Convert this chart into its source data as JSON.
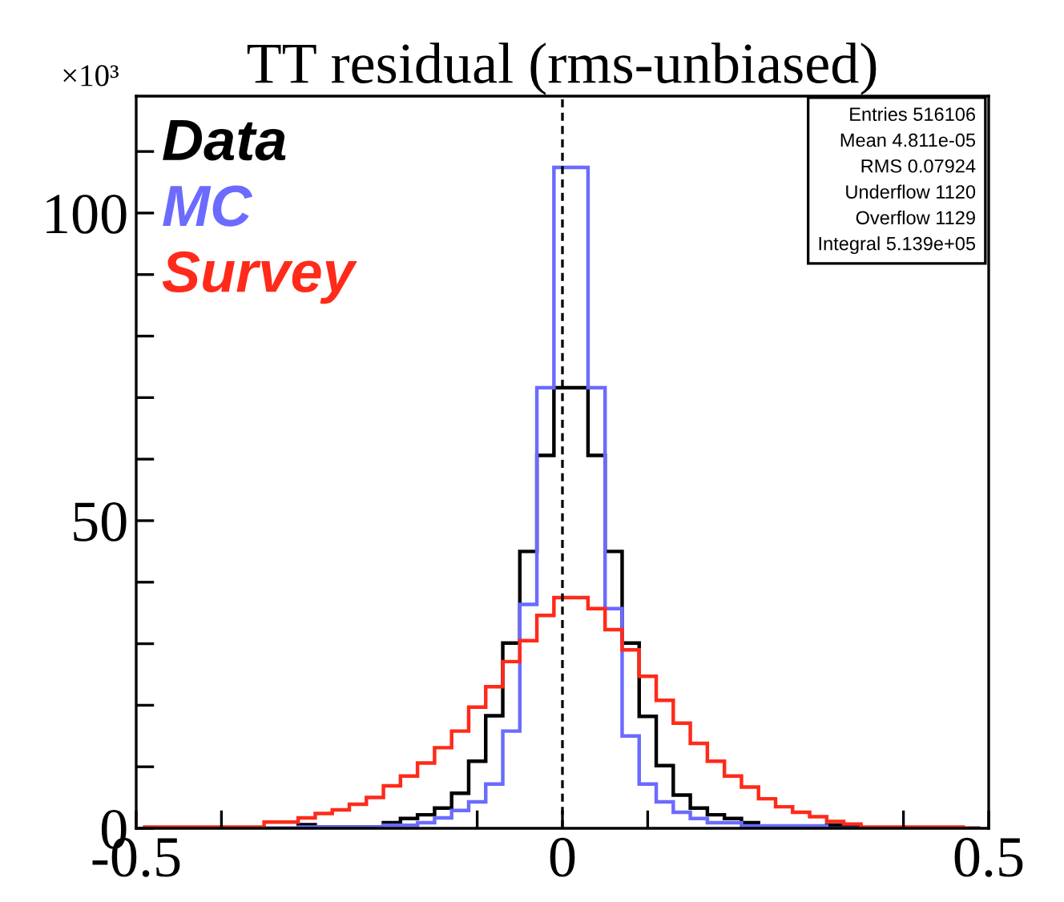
{
  "chart_data": {
    "type": "histogram",
    "title": "TT residual (rms-unbiased)",
    "bins": [
      -0.49,
      -0.47,
      -0.45,
      -0.43,
      -0.41,
      -0.39,
      -0.37,
      -0.35,
      -0.33,
      -0.31,
      -0.29,
      -0.27,
      -0.25,
      -0.23,
      -0.21,
      -0.19,
      -0.17,
      -0.15,
      -0.13,
      -0.11,
      -0.09,
      -0.07,
      -0.05,
      -0.03,
      -0.01,
      0.01,
      0.03,
      0.05,
      0.07,
      0.09,
      0.11,
      0.13,
      0.15,
      0.17,
      0.19,
      0.21,
      0.23,
      0.25,
      0.27,
      0.29,
      0.31,
      0.33,
      0.35,
      0.37,
      0.39,
      0.41,
      0.43,
      0.45,
      0.47,
      0.49
    ],
    "series": [
      {
        "name": "Data",
        "color": "#000000",
        "values": [
          0,
          0,
          0,
          0,
          0,
          0,
          0,
          0,
          0,
          0.6,
          0.2,
          0.2,
          0.2,
          0.2,
          0.9,
          1.6,
          2.2,
          3.3,
          5.7,
          10.9,
          18.3,
          30.1,
          45.0,
          60.6,
          71.6,
          71.6,
          60.6,
          45.0,
          30.1,
          18.2,
          10.2,
          5.4,
          3.3,
          2.2,
          1.6,
          0.9,
          0.2,
          0.2,
          0.2,
          0.2,
          0.5,
          0.5,
          0,
          0,
          0,
          0,
          0,
          0,
          0
        ]
      },
      {
        "name": "MC",
        "color": "#6b6bff",
        "values": [
          0,
          0,
          0,
          0,
          0,
          0,
          0,
          0,
          0,
          0.2,
          0.2,
          0.2,
          0.2,
          0.2,
          0.5,
          0.5,
          0.9,
          1.7,
          2.9,
          4.3,
          7.2,
          15.8,
          36.4,
          71.6,
          107.4,
          107.4,
          71.6,
          35.7,
          15.0,
          7.2,
          4.3,
          2.6,
          1.6,
          0.9,
          0.9,
          0.4,
          0.4,
          0.4,
          0.4,
          0.4,
          0,
          0,
          0,
          0,
          0,
          0,
          0,
          0,
          0
        ]
      },
      {
        "name": "Survey",
        "color": "#ff2a1a",
        "values": [
          0.2,
          0.2,
          0.2,
          0.2,
          0.2,
          0.2,
          0.2,
          1.0,
          1.0,
          1.7,
          2.4,
          3.0,
          3.9,
          5.0,
          6.9,
          8.5,
          10.6,
          13.1,
          15.8,
          19.7,
          23.0,
          27.1,
          30.5,
          34.6,
          37.5,
          37.5,
          35.7,
          32.3,
          29.0,
          24.7,
          20.8,
          17.1,
          13.8,
          10.9,
          8.5,
          6.7,
          4.8,
          3.5,
          2.6,
          1.9,
          1.1,
          0.7,
          0.2,
          0.2,
          0.2,
          0.2,
          0.2,
          0.2,
          0
        ]
      }
    ],
    "xlim": [
      -0.5,
      0.5
    ],
    "xticks": [
      -0.5,
      {
        "value": -0.4,
        "label": null
      },
      {
        "value": -0.1,
        "label": null
      },
      0,
      {
        "value": 0.1,
        "label": null
      },
      {
        "value": 0.4,
        "label": null
      },
      0.5
    ],
    "ylim": [
      0,
      119
    ],
    "yticks": [
      0,
      {
        "value": 10,
        "label": null
      },
      {
        "value": 20,
        "label": null
      },
      {
        "value": 30,
        "label": null
      },
      {
        "value": 40,
        "label": null
      },
      50,
      {
        "value": 60,
        "label": null
      },
      {
        "value": 70,
        "label": null
      },
      {
        "value": 80,
        "label": null
      },
      {
        "value": 90,
        "label": null
      },
      100,
      {
        "value": 110,
        "label": null
      }
    ],
    "ref_lines": [
      {
        "axis": "x",
        "value": 0,
        "label": null,
        "color": "#000000",
        "line_style": "dashed"
      }
    ],
    "annotations": [
      "×10³",
      "Entries 516106",
      "Mean 4.811e-05",
      "RMS 0.07924",
      "Underflow 1120",
      "Overflow 1129",
      "Integral 5.139e+05"
    ],
    "legend": "top left",
    "grid": false
  }
}
